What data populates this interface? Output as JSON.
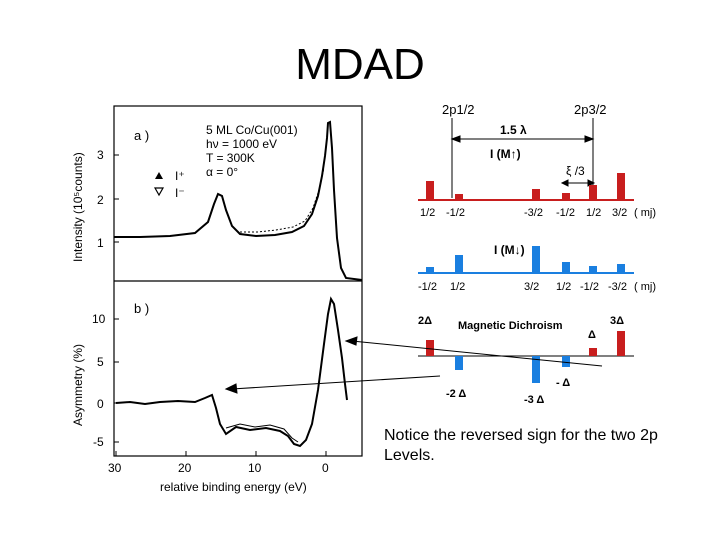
{
  "slide": {
    "title": "MDAD",
    "caption_lines": [
      "Notice the reversed sign for the two 2p",
      "Levels."
    ]
  },
  "plot_a": {
    "label": "a )",
    "ylabel": "Intensity (10⁵counts)",
    "yticks": [
      "3",
      "2",
      "1"
    ],
    "info": [
      "5 ML Co/Cu(001)",
      "hν = 1000 eV",
      "T = 300K",
      "α = 0°"
    ],
    "legend": [
      "I⁺",
      "I⁻"
    ]
  },
  "plot_b": {
    "label": "b )",
    "ylabel": "Asymmetry (%)",
    "yticks": [
      "10",
      "5",
      "0",
      "-5"
    ],
    "xticks": [
      "30",
      "20",
      "10",
      "0"
    ],
    "xlabel": "relative binding energy  (eV)"
  },
  "diagram": {
    "level_left": "2p1/2",
    "level_right": "2p3/2",
    "spacing": "1.5 λ",
    "xi": "ξ /3",
    "up_label": "I (M↑)",
    "down_label": "I (M↓)",
    "up_mj": [
      "1/2",
      "-1/2",
      "-3/2",
      "-1/2",
      "1/2",
      "3/2"
    ],
    "down_mj": [
      "-1/2",
      "1/2",
      "3/2",
      "1/2",
      "-1/2",
      "-3/2"
    ],
    "mj": "( mj)",
    "dichroism_title": "Magnetic Dichroism",
    "delta_pos": [
      "2Δ",
      "Δ",
      "3Δ"
    ],
    "delta_neg": [
      "-2 Δ",
      "-3 Δ",
      "- Δ"
    ]
  },
  "colors": {
    "red": "#c81e1e",
    "blue": "#1a7fe0"
  }
}
